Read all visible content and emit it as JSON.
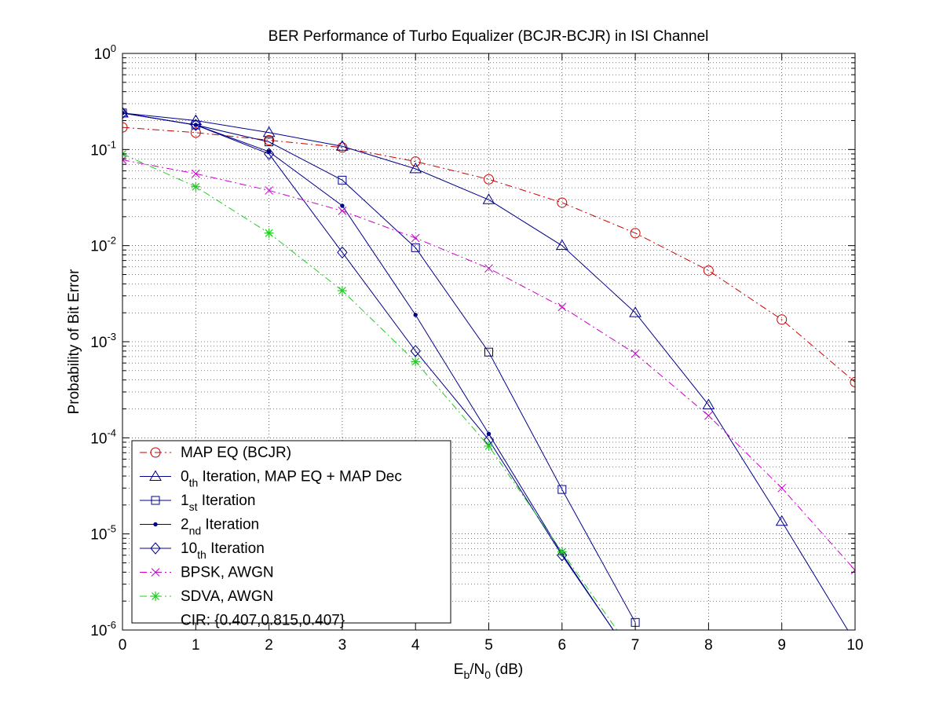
{
  "chart_data": {
    "type": "line",
    "title": "BER Performance of Turbo Equalizer (BCJR-BCJR) in ISI Channel",
    "xlabel": {
      "main": "E",
      "sub1": "b",
      "mid": "/N",
      "sub2": "0",
      "unit": " (dB)"
    },
    "ylabel": "Probability of Bit Error",
    "xlim": [
      0,
      10
    ],
    "ylim": [
      1e-06,
      1
    ],
    "yscale": "log",
    "grid": true,
    "legend_position": "bottom-left",
    "x_ticks": [
      "0",
      "1",
      "2",
      "3",
      "4",
      "5",
      "6",
      "7",
      "8",
      "9",
      "10"
    ],
    "y_ticks": [
      {
        "base": "10",
        "exp": "0"
      },
      {
        "base": "10",
        "exp": "-1"
      },
      {
        "base": "10",
        "exp": "-2"
      },
      {
        "base": "10",
        "exp": "-3"
      },
      {
        "base": "10",
        "exp": "-4"
      },
      {
        "base": "10",
        "exp": "-5"
      },
      {
        "base": "10",
        "exp": "-6"
      }
    ],
    "series": [
      {
        "name": "MAP EQ (BCJR)",
        "legend": {
          "main": "MAP EQ (BCJR)",
          "sub": "",
          "rest": ""
        },
        "color": "#cc0000",
        "dash": "dashdot",
        "marker": "circle",
        "x": [
          0,
          1,
          2,
          3,
          4,
          5,
          6,
          7,
          8,
          9,
          10
        ],
        "y": [
          0.17,
          0.15,
          0.125,
          0.105,
          0.075,
          0.049,
          0.028,
          0.0135,
          0.0055,
          0.0017,
          0.00038
        ]
      },
      {
        "name": "0th Iteration, MAP EQ + MAP Dec",
        "legend": {
          "main": "0",
          "sub": "th",
          "rest": " Iteration, MAP EQ + MAP Dec"
        },
        "color": "#00008b",
        "dash": "solid",
        "marker": "triangle",
        "x": [
          0,
          1,
          2,
          3,
          4,
          5,
          6,
          7,
          8,
          9,
          9.9
        ],
        "y": [
          0.24,
          0.2,
          0.15,
          0.108,
          0.063,
          0.03,
          0.01,
          0.002,
          0.00022,
          1.35e-05,
          1e-06
        ]
      },
      {
        "name": "1st Iteration",
        "legend": {
          "main": "1",
          "sub": "st",
          "rest": " Iteration"
        },
        "color": "#00008b",
        "dash": "solid",
        "marker": "square",
        "x": [
          0,
          1,
          2,
          3,
          4,
          5,
          6,
          7
        ],
        "y": [
          0.24,
          0.18,
          0.12,
          0.048,
          0.0095,
          0.00078,
          2.9e-05,
          1.2e-06
        ]
      },
      {
        "name": "2nd Iteration",
        "legend": {
          "main": "2",
          "sub": "nd",
          "rest": " Iteration"
        },
        "color": "#00008b",
        "dash": "solid",
        "marker": "dot",
        "x": [
          0,
          1,
          2,
          3,
          4,
          5,
          6,
          6.7
        ],
        "y": [
          0.24,
          0.18,
          0.095,
          0.026,
          0.0019,
          0.00011,
          6.2e-06,
          1e-06
        ]
      },
      {
        "name": "10th Iteration",
        "legend": {
          "main": "10",
          "sub": "th",
          "rest": " Iteration"
        },
        "color": "#00008b",
        "dash": "solid",
        "marker": "diamond",
        "x": [
          0,
          1,
          2,
          3,
          4,
          5,
          6,
          6.7
        ],
        "y": [
          0.24,
          0.18,
          0.09,
          0.0085,
          0.0008,
          9.5e-05,
          6e-06,
          1e-06
        ]
      },
      {
        "name": "BPSK, AWGN",
        "legend": {
          "main": "BPSK, AWGN",
          "sub": "",
          "rest": ""
        },
        "color": "#cc00cc",
        "dash": "dashdot",
        "marker": "x",
        "x": [
          0,
          1,
          2,
          3,
          4,
          5,
          6,
          7,
          8,
          9,
          10
        ],
        "y": [
          0.078,
          0.056,
          0.0375,
          0.023,
          0.012,
          0.0058,
          0.0023,
          0.00075,
          0.00017,
          3e-05,
          4.2e-06
        ]
      },
      {
        "name": "SDVA, AWGN",
        "legend": {
          "main": "SDVA, AWGN",
          "sub": "",
          "rest": ""
        },
        "color": "#22cc22",
        "dash": "dashdot",
        "marker": "star",
        "x": [
          0,
          1,
          2,
          3,
          4,
          5,
          6,
          6.75
        ],
        "y": [
          0.09,
          0.041,
          0.0135,
          0.0034,
          0.00062,
          8.2e-05,
          6.5e-06,
          1e-06
        ]
      }
    ],
    "legend_extra": "CIR: {0.407,0.815,0.407}"
  }
}
